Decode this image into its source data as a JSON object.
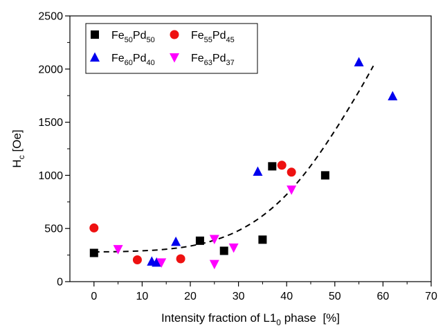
{
  "chart_data": {
    "type": "scatter",
    "title": "",
    "xlabel": {
      "pre": "Intensity fraction of L1",
      "sub": "0",
      "post": " phase  [%]"
    },
    "ylabel": {
      "pre": "H",
      "sub": "c",
      "post": " [Oe]"
    },
    "xlim": [
      -5,
      70
    ],
    "ylim": [
      0,
      2500
    ],
    "xticks": [
      0,
      10,
      20,
      30,
      40,
      50,
      60,
      70
    ],
    "yticks": [
      0,
      500,
      1000,
      1500,
      2000,
      2500
    ],
    "grid": false,
    "legend_position": "top-left",
    "series": [
      {
        "name": {
          "a": "Fe",
          "asub": "50",
          "b": "Pd",
          "bsub": "50"
        },
        "marker": "square",
        "color": "#000000",
        "points": [
          [
            0,
            270
          ],
          [
            22,
            385
          ],
          [
            27,
            290
          ],
          [
            35,
            395
          ],
          [
            37,
            1085
          ],
          [
            48,
            1000
          ]
        ]
      },
      {
        "name": {
          "a": "Fe",
          "asub": "55",
          "b": "Pd",
          "bsub": "45"
        },
        "marker": "circle",
        "color": "#ee1111",
        "points": [
          [
            0,
            505
          ],
          [
            9,
            205
          ],
          [
            18,
            215
          ],
          [
            39,
            1095
          ],
          [
            41,
            1030
          ]
        ]
      },
      {
        "name": {
          "a": "Fe",
          "asub": "60",
          "b": "Pd",
          "bsub": "40"
        },
        "marker": "triangle-up",
        "color": "#0000ee",
        "points": [
          [
            12,
            190
          ],
          [
            13,
            180
          ],
          [
            17,
            375
          ],
          [
            34,
            1035
          ],
          [
            55,
            2065
          ],
          [
            62,
            1745
          ]
        ]
      },
      {
        "name": {
          "a": "Fe",
          "asub": "63",
          "b": "Pd",
          "bsub": "37"
        },
        "marker": "triangle-down",
        "color": "#ff00ff",
        "points": [
          [
            5,
            305
          ],
          [
            14,
            180
          ],
          [
            25,
            400
          ],
          [
            25,
            165
          ],
          [
            29,
            320
          ],
          [
            41,
            865
          ]
        ]
      }
    ],
    "fit_curve": {
      "style": "dashed",
      "color": "#000000",
      "points": [
        [
          0,
          280
        ],
        [
          5,
          282
        ],
        [
          10,
          290
        ],
        [
          15,
          305
        ],
        [
          20,
          335
        ],
        [
          25,
          390
        ],
        [
          30,
          480
        ],
        [
          35,
          620
        ],
        [
          40,
          820
        ],
        [
          45,
          1090
        ],
        [
          50,
          1420
        ],
        [
          55,
          1790
        ],
        [
          58,
          2030
        ]
      ]
    }
  }
}
